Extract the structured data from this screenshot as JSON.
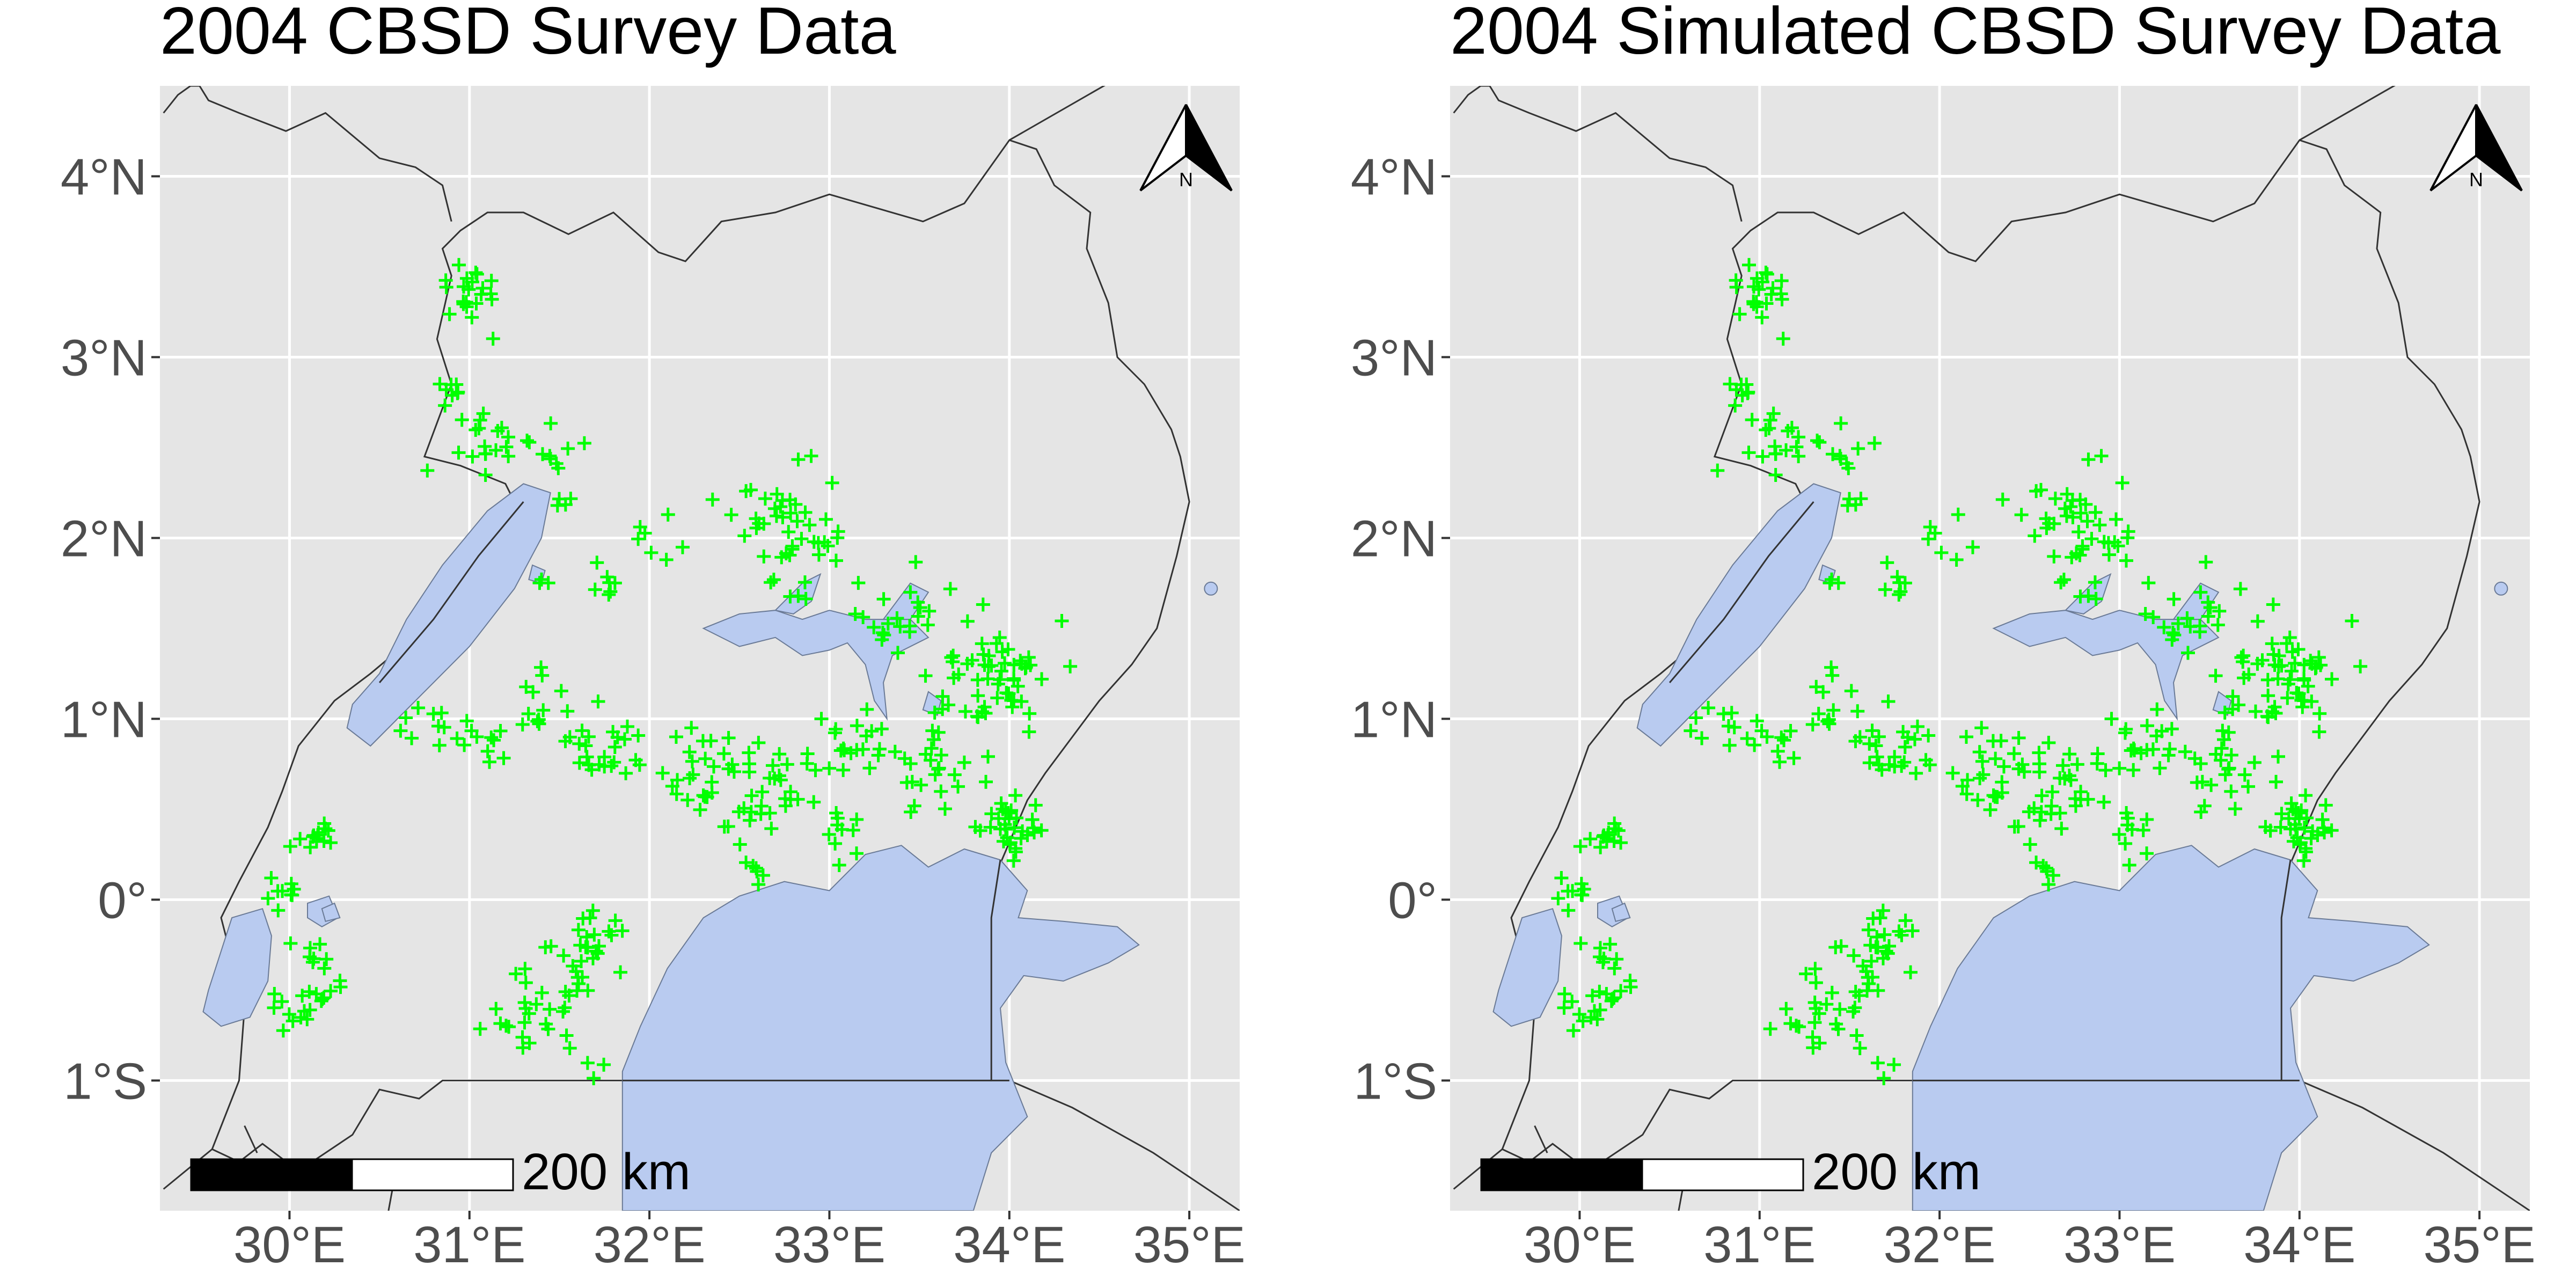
{
  "panels": [
    {
      "id": "observed",
      "title": "2004 CBSD Survey Data"
    },
    {
      "id": "simulated",
      "title": "2004 Simulated CBSD Survey Data"
    }
  ],
  "axes": {
    "x_ticks": [
      30,
      31,
      32,
      33,
      34,
      35
    ],
    "x_tick_labels": [
      "30°E",
      "31°E",
      "32°E",
      "33°E",
      "34°E",
      "35°E"
    ],
    "y_ticks": [
      4,
      3,
      2,
      1,
      0,
      -1
    ],
    "y_tick_labels": [
      "4°N",
      "3°N",
      "2°N",
      "1°N",
      "0°",
      "1°S"
    ],
    "xlim": [
      29.28,
      35.28
    ],
    "ylim": [
      -1.72,
      4.5
    ]
  },
  "scale_bar": {
    "label": "200 km"
  },
  "north_arrow": {
    "label": "N"
  },
  "colors": {
    "panel_background": "#e5e5e5",
    "gridline": "#ffffff",
    "water": "#b9cbf0",
    "border": "#333333",
    "survey_points": "#00ff00",
    "text": "#000000",
    "tick_text": "#4d4d4d"
  },
  "survey_points_note": "green plus markers showing survey locations; identical pattern in both panels",
  "survey_clusters": [
    {
      "lon": 31.0,
      "lat": 3.35,
      "sd": 0.08,
      "n": 22
    },
    {
      "lon": 30.95,
      "lat": 2.75,
      "sd": 0.08,
      "n": 10
    },
    {
      "lon": 31.1,
      "lat": 2.5,
      "sd": 0.12,
      "n": 16
    },
    {
      "lon": 31.45,
      "lat": 2.5,
      "sd": 0.08,
      "n": 10
    },
    {
      "lon": 31.5,
      "lat": 2.2,
      "sd": 0.03,
      "n": 4
    },
    {
      "lon": 31.4,
      "lat": 1.75,
      "sd": 0.03,
      "n": 3
    },
    {
      "lon": 31.75,
      "lat": 1.75,
      "sd": 0.05,
      "n": 6
    },
    {
      "lon": 32.05,
      "lat": 1.95,
      "sd": 0.12,
      "n": 8
    },
    {
      "lon": 32.7,
      "lat": 2.1,
      "sd": 0.15,
      "n": 30
    },
    {
      "lon": 33.0,
      "lat": 1.95,
      "sd": 0.12,
      "n": 12
    },
    {
      "lon": 32.8,
      "lat": 1.7,
      "sd": 0.06,
      "n": 6
    },
    {
      "lon": 33.4,
      "lat": 1.55,
      "sd": 0.15,
      "n": 25
    },
    {
      "lon": 33.9,
      "lat": 1.25,
      "sd": 0.18,
      "n": 55
    },
    {
      "lon": 33.6,
      "lat": 0.75,
      "sd": 0.14,
      "n": 25
    },
    {
      "lon": 33.1,
      "lat": 0.85,
      "sd": 0.12,
      "n": 22
    },
    {
      "lon": 32.6,
      "lat": 0.65,
      "sd": 0.17,
      "n": 45
    },
    {
      "lon": 32.25,
      "lat": 0.75,
      "sd": 0.12,
      "n": 12
    },
    {
      "lon": 31.75,
      "lat": 0.9,
      "sd": 0.15,
      "n": 25
    },
    {
      "lon": 31.4,
      "lat": 1.1,
      "sd": 0.12,
      "n": 12
    },
    {
      "lon": 31.05,
      "lat": 0.85,
      "sd": 0.1,
      "n": 12
    },
    {
      "lon": 30.75,
      "lat": 0.95,
      "sd": 0.08,
      "n": 8
    },
    {
      "lon": 32.6,
      "lat": 0.17,
      "sd": 0.05,
      "n": 6
    },
    {
      "lon": 33.1,
      "lat": 0.35,
      "sd": 0.1,
      "n": 10
    },
    {
      "lon": 34.0,
      "lat": 0.42,
      "sd": 0.1,
      "n": 32
    },
    {
      "lon": 30.15,
      "lat": 0.35,
      "sd": 0.06,
      "n": 14
    },
    {
      "lon": 29.95,
      "lat": 0.05,
      "sd": 0.05,
      "n": 9
    },
    {
      "lon": 30.15,
      "lat": -0.3,
      "sd": 0.07,
      "n": 8
    },
    {
      "lon": 30.2,
      "lat": -0.5,
      "sd": 0.06,
      "n": 10
    },
    {
      "lon": 30.0,
      "lat": -0.62,
      "sd": 0.06,
      "n": 9
    },
    {
      "lon": 31.7,
      "lat": -0.2,
      "sd": 0.1,
      "n": 18
    },
    {
      "lon": 31.5,
      "lat": -0.45,
      "sd": 0.12,
      "n": 18
    },
    {
      "lon": 31.3,
      "lat": -0.7,
      "sd": 0.12,
      "n": 18
    },
    {
      "lon": 31.7,
      "lat": -0.9,
      "sd": 0.05,
      "n": 4
    }
  ]
}
